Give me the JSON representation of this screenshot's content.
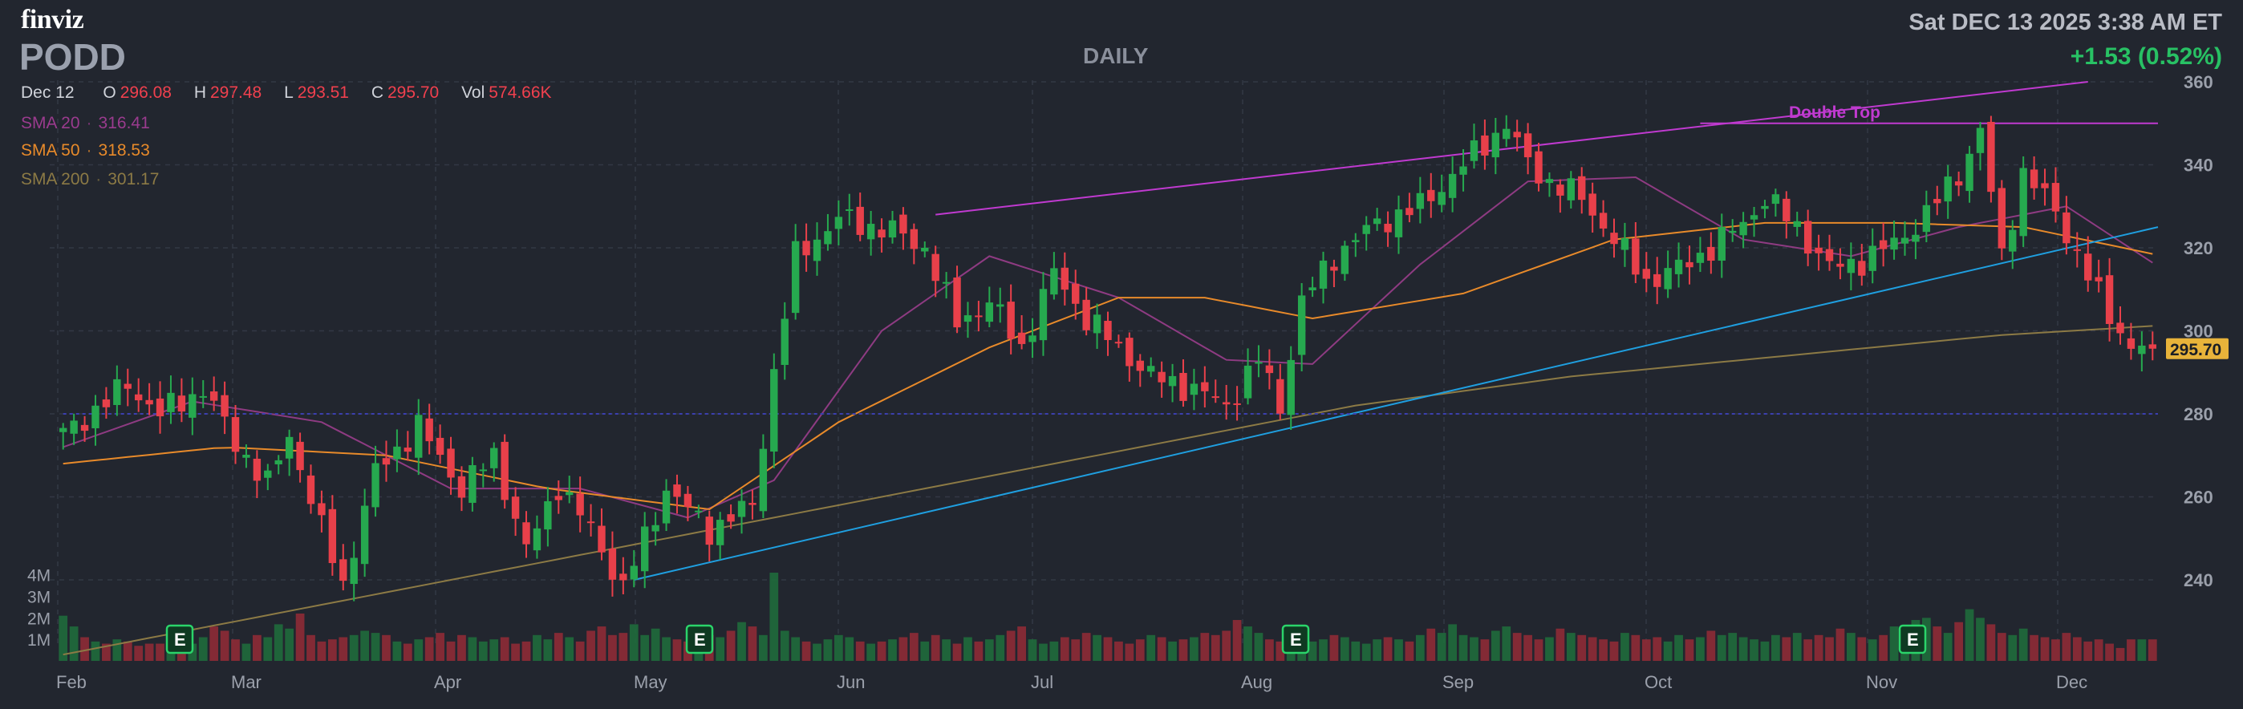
{
  "header": {
    "logo": "finviz",
    "ticker": "PODD",
    "timeframe": "DAILY",
    "datetime": "Sat DEC 13 2025 3:38 AM ET",
    "change": "+1.53 (0.52%)"
  },
  "ohlc": {
    "date": "Dec 12",
    "open_label": "O",
    "open": "296.08",
    "high_label": "H",
    "high": "297.48",
    "low_label": "L",
    "low": "293.51",
    "close_label": "C",
    "close": "295.70",
    "vol_label": "Vol",
    "vol": "574.66K"
  },
  "indicators": {
    "sma20": {
      "label": "SMA 20",
      "value": "316.41"
    },
    "sma50": {
      "label": "SMA 50",
      "value": "318.53"
    },
    "sma200": {
      "label": "SMA 200",
      "value": "301.17"
    }
  },
  "colors": {
    "up": "#26a94f",
    "down": "#e8404a",
    "background": "#22262f",
    "sma20": "#8e3b82",
    "sma50": "#e88a2a",
    "sma200": "#8c7a45",
    "trendline_up": "#1f9fe0",
    "channel": "#c03ad0",
    "support": "#3b3fb0"
  },
  "chart_data": {
    "type": "candlestick",
    "ticker": "PODD",
    "timeframe": "DAILY",
    "ylim": [
      224,
      360
    ],
    "y_ticks": [
      "360",
      "340",
      "320",
      "300",
      "280",
      "260",
      "240"
    ],
    "x_ticks": [
      "Feb",
      "Mar",
      "Apr",
      "May",
      "Jun",
      "Jul",
      "Aug",
      "Sep",
      "Oct",
      "Nov",
      "Dec"
    ],
    "volume_ticks": [
      "4M",
      "3M",
      "2M",
      "1M"
    ],
    "last_price_label": "295.70",
    "earnings_markers": [
      "E",
      "E",
      "E",
      "E"
    ],
    "annotation": "Double Top",
    "price_path": [
      [
        0,
        275
      ],
      [
        6,
        287
      ],
      [
        9,
        280
      ],
      [
        13,
        286
      ],
      [
        16,
        273
      ],
      [
        19,
        263
      ],
      [
        21,
        275
      ],
      [
        24,
        252
      ],
      [
        26,
        239
      ],
      [
        29,
        266
      ],
      [
        33,
        277
      ],
      [
        37,
        262
      ],
      [
        40,
        270
      ],
      [
        43,
        247
      ],
      [
        46,
        263
      ],
      [
        49,
        252
      ],
      [
        52,
        238
      ],
      [
        56,
        262
      ],
      [
        60,
        252
      ],
      [
        64,
        258
      ],
      [
        66,
        290
      ],
      [
        68,
        318
      ],
      [
        72,
        327
      ],
      [
        77,
        324
      ],
      [
        80,
        320
      ],
      [
        83,
        302
      ],
      [
        86,
        307
      ],
      [
        89,
        296
      ],
      [
        92,
        314
      ],
      [
        95,
        303
      ],
      [
        98,
        296
      ],
      [
        101,
        289
      ],
      [
        105,
        286
      ],
      [
        108,
        282
      ],
      [
        111,
        293
      ],
      [
        113,
        282
      ],
      [
        115,
        307
      ],
      [
        118,
        318
      ],
      [
        122,
        326
      ],
      [
        126,
        330
      ],
      [
        130,
        340
      ],
      [
        134,
        350
      ],
      [
        136,
        340
      ],
      [
        138,
        336
      ],
      [
        141,
        332
      ],
      [
        144,
        322
      ],
      [
        147,
        312
      ],
      [
        150,
        315
      ],
      [
        153,
        320
      ],
      [
        156,
        326
      ],
      [
        158,
        332
      ],
      [
        161,
        325
      ],
      [
        164,
        315
      ],
      [
        167,
        317
      ],
      [
        170,
        321
      ],
      [
        173,
        328
      ],
      [
        176,
        338
      ],
      [
        178,
        348
      ],
      [
        180,
        318
      ],
      [
        182,
        338
      ],
      [
        185,
        329
      ],
      [
        188,
        313
      ],
      [
        190,
        304
      ],
      [
        192,
        296
      ],
      [
        194,
        295.7
      ]
    ],
    "volume": [
      2.1,
      1.6,
      1.1,
      0.9,
      0.8,
      1.0,
      0.9,
      0.7,
      0.8,
      0.8,
      0.9,
      1.2,
      0.8,
      1.1,
      1.6,
      1.4,
      1.0,
      0.8,
      1.2,
      1.1,
      1.7,
      1.5,
      2.2,
      1.2,
      0.9,
      1.0,
      1.1,
      1.2,
      1.4,
      1.3,
      1.2,
      0.9,
      0.8,
      1.0,
      1.1,
      1.3,
      0.9,
      1.2,
      1.1,
      0.9,
      1.0,
      1.1,
      0.8,
      0.9,
      1.2,
      1.0,
      1.3,
      1.1,
      0.9,
      1.4,
      1.6,
      1.2,
      1.3,
      1.7,
      1.2,
      1.5,
      1.1,
      1.0,
      0.9,
      1.3,
      1.2,
      1.1,
      1.4,
      1.8,
      1.6,
      1.2,
      4.1,
      1.4,
      1.1,
      0.9,
      0.8,
      1.0,
      1.2,
      1.1,
      0.9,
      0.8,
      0.9,
      1.0,
      1.1,
      1.3,
      0.9,
      1.2,
      1.0,
      0.8,
      1.1,
      0.9,
      1.0,
      1.2,
      1.4,
      1.6,
      1.0,
      0.8,
      0.9,
      1.1,
      1.0,
      1.3,
      1.2,
      1.1,
      0.9,
      0.8,
      1.0,
      1.2,
      1.1,
      0.9,
      1.0,
      1.1,
      1.3,
      1.2,
      1.4,
      1.9,
      1.6,
      1.3,
      1.0,
      0.9,
      1.1,
      1.0,
      0.9,
      1.0,
      1.2,
      1.1,
      0.9,
      0.8,
      1.0,
      1.1,
      1.0,
      0.9,
      1.2,
      1.5,
      1.3,
      1.7,
      1.2,
      1.1,
      1.0,
      1.4,
      1.6,
      1.3,
      1.2,
      1.0,
      1.1,
      1.5,
      1.3,
      1.2,
      1.1,
      1.0,
      0.9,
      1.3,
      1.2,
      1.0,
      1.1,
      0.9,
      1.2,
      1.0,
      1.1,
      1.4,
      1.2,
      1.3,
      1.1,
      1.0,
      0.9,
      1.2,
      1.1,
      1.3,
      1.0,
      1.2,
      1.1,
      1.5,
      1.3,
      1.1,
      1.0,
      1.2,
      1.6,
      1.4,
      1.9,
      2.0,
      1.6,
      1.3,
      1.8,
      2.4,
      2.0,
      1.7,
      1.3,
      1.2,
      1.5,
      1.2,
      1.1,
      1.0,
      1.3,
      1.1,
      0.9,
      1.0,
      0.8,
      0.6
    ],
    "trendlines": [
      {
        "name": "ascending support",
        "from": [
          53,
          240
        ],
        "to": [
          198,
          325
        ]
      },
      {
        "name": "upper channel",
        "from": [
          81,
          328
        ],
        "to": [
          188,
          360
        ]
      },
      {
        "name": "double top resistance",
        "from": [
          152,
          350
        ],
        "to": [
          198,
          350
        ]
      },
      {
        "name": "horizontal support",
        "from": [
          0,
          280
        ],
        "to": [
          198,
          280
        ]
      }
    ],
    "sma20_path": [
      [
        0,
        272
      ],
      [
        12,
        283
      ],
      [
        24,
        278
      ],
      [
        36,
        262
      ],
      [
        48,
        262
      ],
      [
        58,
        255
      ],
      [
        66,
        264
      ],
      [
        76,
        300
      ],
      [
        86,
        318
      ],
      [
        98,
        308
      ],
      [
        108,
        293
      ],
      [
        116,
        292
      ],
      [
        126,
        316
      ],
      [
        136,
        336
      ],
      [
        146,
        337
      ],
      [
        156,
        322
      ],
      [
        166,
        318
      ],
      [
        176,
        325
      ],
      [
        186,
        330
      ],
      [
        194,
        316.41
      ]
    ],
    "sma50_path": [
      [
        0,
        268
      ],
      [
        15,
        272
      ],
      [
        30,
        270
      ],
      [
        45,
        262
      ],
      [
        60,
        257
      ],
      [
        72,
        278
      ],
      [
        86,
        296
      ],
      [
        98,
        308
      ],
      [
        106,
        308
      ],
      [
        116,
        303
      ],
      [
        130,
        309
      ],
      [
        144,
        322
      ],
      [
        158,
        326
      ],
      [
        170,
        326
      ],
      [
        182,
        325
      ],
      [
        194,
        318.53
      ]
    ],
    "sma200_path": [
      [
        0,
        222
      ],
      [
        20,
        232
      ],
      [
        40,
        242
      ],
      [
        60,
        252
      ],
      [
        80,
        262
      ],
      [
        100,
        272
      ],
      [
        120,
        282
      ],
      [
        140,
        289
      ],
      [
        160,
        294
      ],
      [
        180,
        299
      ],
      [
        194,
        301.17
      ]
    ]
  }
}
